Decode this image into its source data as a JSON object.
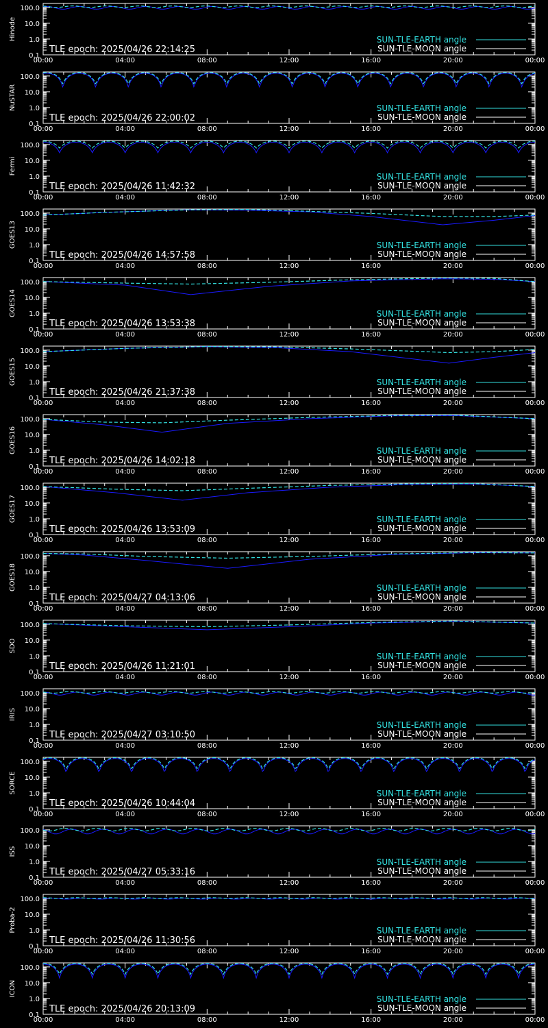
{
  "colors": {
    "background": "#000000",
    "axis": "#ffffff",
    "earth_angle": "#33e0e0",
    "moon_angle": "#1a1aff",
    "legend_moon_text": "#ffffff"
  },
  "x_tick_labels": [
    "00:00",
    "04:00",
    "08:00",
    "12:00",
    "16:00",
    "20:00",
    "00:00"
  ],
  "y_tick_labels": [
    "0.1",
    "1.0",
    "10.0",
    "100.0"
  ],
  "legend": {
    "earth_label": "SUN-TLE-EARTH angle",
    "moon_label": "SUN-TLE-MOON angle"
  },
  "chart_data": [
    {
      "type": "line",
      "satellite": "Hinode",
      "tle_epoch_text": "TLE epoch: 2025/04/26 22:14:25",
      "xlim": [
        0,
        24
      ],
      "ylim": [
        0.1,
        180
      ],
      "yscale": "log",
      "earth": {
        "kind": "osc",
        "period": 1.62,
        "lo": 100,
        "hi": 125,
        "phase": 0.1
      },
      "moon": {
        "kind": "osc",
        "period": 1.62,
        "lo": 78,
        "hi": 115,
        "phase": 0.9
      }
    },
    {
      "type": "line",
      "satellite": "NuSTAR",
      "tle_epoch_text": "TLE epoch: 2025/04/26 22:00:02",
      "xlim": [
        0,
        24
      ],
      "ylim": [
        0.1,
        180
      ],
      "yscale": "log",
      "earth": {
        "kind": "arch",
        "period": 1.6,
        "lo": 30,
        "hi": 165,
        "phase": 0.4
      },
      "moon": {
        "kind": "arch",
        "period": 1.6,
        "lo": 18,
        "hi": 150,
        "phase": 0.4
      }
    },
    {
      "type": "line",
      "satellite": "Fermi",
      "tle_epoch_text": "TLE epoch: 2025/04/26 11:42:32",
      "xlim": [
        0,
        24
      ],
      "ylim": [
        0.1,
        180
      ],
      "yscale": "log",
      "earth": {
        "kind": "arch",
        "period": 1.6,
        "lo": 60,
        "hi": 165,
        "phase": 0.5
      },
      "moon": {
        "kind": "arch",
        "period": 1.6,
        "lo": 30,
        "hi": 140,
        "phase": 0.5
      }
    },
    {
      "type": "line",
      "satellite": "GOES13",
      "tle_epoch_text": "TLE epoch: 2025/04/26 14:57:58",
      "xlim": [
        0,
        24
      ],
      "ylim": [
        0.1,
        180
      ],
      "yscale": "log",
      "earth": {
        "kind": "pts",
        "x": [
          0,
          3,
          7,
          10,
          13,
          16,
          19.5,
          22,
          24
        ],
        "y": [
          75,
          110,
          160,
          170,
          130,
          95,
          60,
          60,
          75
        ]
      },
      "moon": {
        "kind": "pts",
        "x": [
          0,
          3,
          7,
          10,
          13,
          16,
          19.5,
          22,
          24
        ],
        "y": [
          75,
          110,
          160,
          150,
          120,
          60,
          18,
          35,
          70
        ]
      }
    },
    {
      "type": "line",
      "satellite": "GOES14",
      "tle_epoch_text": "TLE epoch: 2025/04/26 13:53:38",
      "xlim": [
        0,
        24
      ],
      "ylim": [
        0.1,
        180
      ],
      "yscale": "log",
      "earth": {
        "kind": "pts",
        "x": [
          0,
          4,
          7.2,
          11,
          15,
          19.5,
          22,
          24
        ],
        "y": [
          100,
          80,
          70,
          90,
          130,
          170,
          160,
          100
        ]
      },
      "moon": {
        "kind": "pts",
        "x": [
          0,
          4,
          7.2,
          11,
          15,
          19.5,
          22,
          24
        ],
        "y": [
          100,
          60,
          15,
          50,
          110,
          150,
          140,
          100
        ]
      }
    },
    {
      "type": "line",
      "satellite": "GOES15",
      "tle_epoch_text": "TLE epoch: 2025/04/26 21:37:38",
      "xlim": [
        0,
        24
      ],
      "ylim": [
        0.1,
        180
      ],
      "yscale": "log",
      "earth": {
        "kind": "pts",
        "x": [
          0,
          4,
          8,
          11.5,
          15,
          19.8,
          22,
          24
        ],
        "y": [
          80,
          130,
          170,
          160,
          120,
          70,
          80,
          110
        ]
      },
      "moon": {
        "kind": "pts",
        "x": [
          0,
          4,
          8,
          11.5,
          15,
          19.8,
          22,
          24
        ],
        "y": [
          80,
          130,
          165,
          140,
          80,
          15,
          35,
          70
        ]
      }
    },
    {
      "type": "line",
      "satellite": "GOES16",
      "tle_epoch_text": "TLE epoch: 2025/04/26 14:02:18",
      "xlim": [
        0,
        24
      ],
      "ylim": [
        0.1,
        180
      ],
      "yscale": "log",
      "earth": {
        "kind": "pts",
        "x": [
          0,
          3,
          5.8,
          9,
          13,
          17,
          20,
          24
        ],
        "y": [
          90,
          60,
          55,
          80,
          120,
          160,
          170,
          100
        ]
      },
      "moon": {
        "kind": "pts",
        "x": [
          0,
          3,
          5.8,
          9,
          13,
          17,
          20,
          24
        ],
        "y": [
          90,
          40,
          14,
          50,
          100,
          150,
          160,
          100
        ]
      }
    },
    {
      "type": "line",
      "satellite": "GOES17",
      "tle_epoch_text": "TLE epoch: 2025/04/26 13:53:09",
      "xlim": [
        0,
        24
      ],
      "ylim": [
        0.1,
        180
      ],
      "yscale": "log",
      "earth": {
        "kind": "pts",
        "x": [
          0,
          3.5,
          6.8,
          10,
          14,
          18,
          21,
          24
        ],
        "y": [
          110,
          75,
          60,
          85,
          130,
          165,
          170,
          110
        ]
      },
      "moon": {
        "kind": "pts",
        "x": [
          0,
          3.5,
          6.8,
          10,
          14,
          18,
          21,
          24
        ],
        "y": [
          110,
          45,
          15,
          45,
          100,
          150,
          160,
          110
        ]
      }
    },
    {
      "type": "line",
      "satellite": "GOES18",
      "tle_epoch_text": "TLE epoch: 2025/04/27 04:13:06",
      "xlim": [
        0,
        24
      ],
      "ylim": [
        0.1,
        180
      ],
      "yscale": "log",
      "earth": {
        "kind": "pts",
        "x": [
          0,
          2,
          5,
          9,
          13,
          17,
          21,
          24
        ],
        "y": [
          140,
          130,
          90,
          70,
          90,
          130,
          160,
          150
        ]
      },
      "moon": {
        "kind": "pts",
        "x": [
          0,
          2,
          5,
          9,
          13,
          17,
          21,
          24
        ],
        "y": [
          140,
          110,
          50,
          16,
          60,
          120,
          155,
          150
        ]
      }
    },
    {
      "type": "line",
      "satellite": "SDO",
      "tle_epoch_text": "TLE epoch: 2025/04/26 11:21:01",
      "xlim": [
        0,
        24
      ],
      "ylim": [
        0.1,
        180
      ],
      "yscale": "log",
      "earth": {
        "kind": "pts",
        "x": [
          0,
          4,
          8,
          12,
          16,
          20,
          24
        ],
        "y": [
          110,
          80,
          70,
          90,
          130,
          160,
          120
        ]
      },
      "moon": {
        "kind": "pts",
        "x": [
          0,
          4,
          8,
          12,
          16,
          20,
          24
        ],
        "y": [
          110,
          70,
          45,
          70,
          120,
          150,
          120
        ]
      }
    },
    {
      "type": "line",
      "satellite": "IRIS",
      "tle_epoch_text": "TLE epoch: 2025/04/27 03:10:50",
      "xlim": [
        0,
        24
      ],
      "ylim": [
        0.1,
        180
      ],
      "yscale": "log",
      "earth": {
        "kind": "osc",
        "period": 1.65,
        "lo": 95,
        "hi": 120,
        "phase": 0.2
      },
      "moon": {
        "kind": "osc",
        "period": 1.65,
        "lo": 72,
        "hi": 110,
        "phase": 1.0
      }
    },
    {
      "type": "line",
      "satellite": "SORCE",
      "tle_epoch_text": "TLE epoch: 2025/04/26 10:44:04",
      "xlim": [
        0,
        24
      ],
      "ylim": [
        0.1,
        180
      ],
      "yscale": "log",
      "earth": {
        "kind": "arch",
        "period": 1.6,
        "lo": 30,
        "hi": 170,
        "phase": 0.3
      },
      "moon": {
        "kind": "arch",
        "period": 1.6,
        "lo": 18,
        "hi": 150,
        "phase": 0.3
      }
    },
    {
      "type": "line",
      "satellite": "ISS",
      "tle_epoch_text": "TLE epoch: 2025/04/27 05:33:16",
      "xlim": [
        0,
        24
      ],
      "ylim": [
        0.1,
        180
      ],
      "yscale": "log",
      "earth": {
        "kind": "osc",
        "period": 1.55,
        "lo": 85,
        "hi": 125,
        "phase": 0.3
      },
      "moon": {
        "kind": "osc",
        "period": 1.55,
        "lo": 55,
        "hi": 110,
        "phase": 1.1
      }
    },
    {
      "type": "line",
      "satellite": "Proba-2",
      "tle_epoch_text": "TLE epoch: 2025/04/26 11:30:56",
      "xlim": [
        0,
        24
      ],
      "ylim": [
        0.1,
        180
      ],
      "yscale": "log",
      "earth": {
        "kind": "osc",
        "period": 1.65,
        "lo": 100,
        "hi": 110,
        "phase": 0.0
      },
      "moon": {
        "kind": "osc",
        "period": 1.65,
        "lo": 90,
        "hi": 105,
        "phase": 0.8
      }
    },
    {
      "type": "line",
      "satellite": "ICON",
      "tle_epoch_text": "TLE epoch: 2025/04/26 20:13:09",
      "xlim": [
        0,
        24
      ],
      "ylim": [
        0.1,
        180
      ],
      "yscale": "log",
      "earth": {
        "kind": "arch",
        "period": 1.6,
        "lo": 35,
        "hi": 170,
        "phase": 0.5
      },
      "moon": {
        "kind": "arch",
        "period": 1.6,
        "lo": 20,
        "hi": 150,
        "phase": 0.5
      }
    }
  ]
}
